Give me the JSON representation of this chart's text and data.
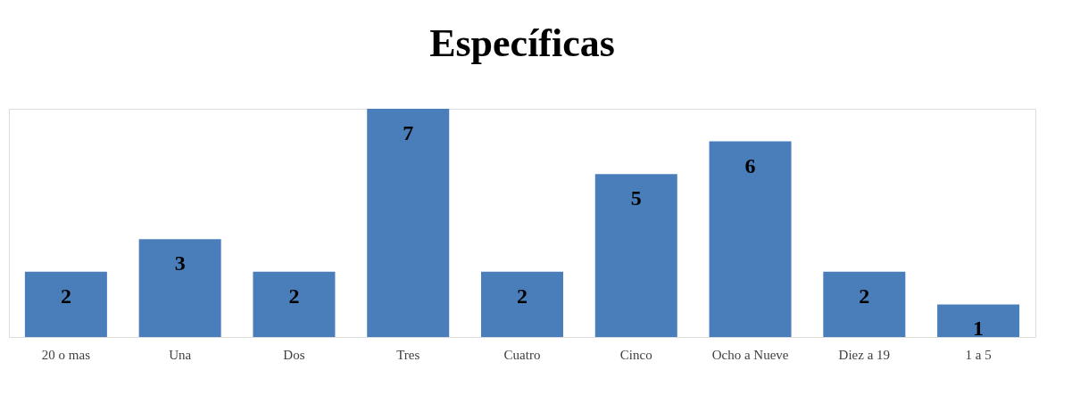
{
  "chart_data": {
    "type": "bar",
    "title": "Específicas",
    "categories": [
      "20 o mas",
      "Una",
      "Dos",
      "Tres",
      "Cuatro",
      "Cinco",
      "Ocho a Nueve",
      "Diez a 19",
      "1 a 5"
    ],
    "values": [
      2,
      3,
      2,
      7,
      2,
      5,
      6,
      2,
      1
    ],
    "color": "#4a7ebb",
    "data_labels": true,
    "grid": false
  }
}
